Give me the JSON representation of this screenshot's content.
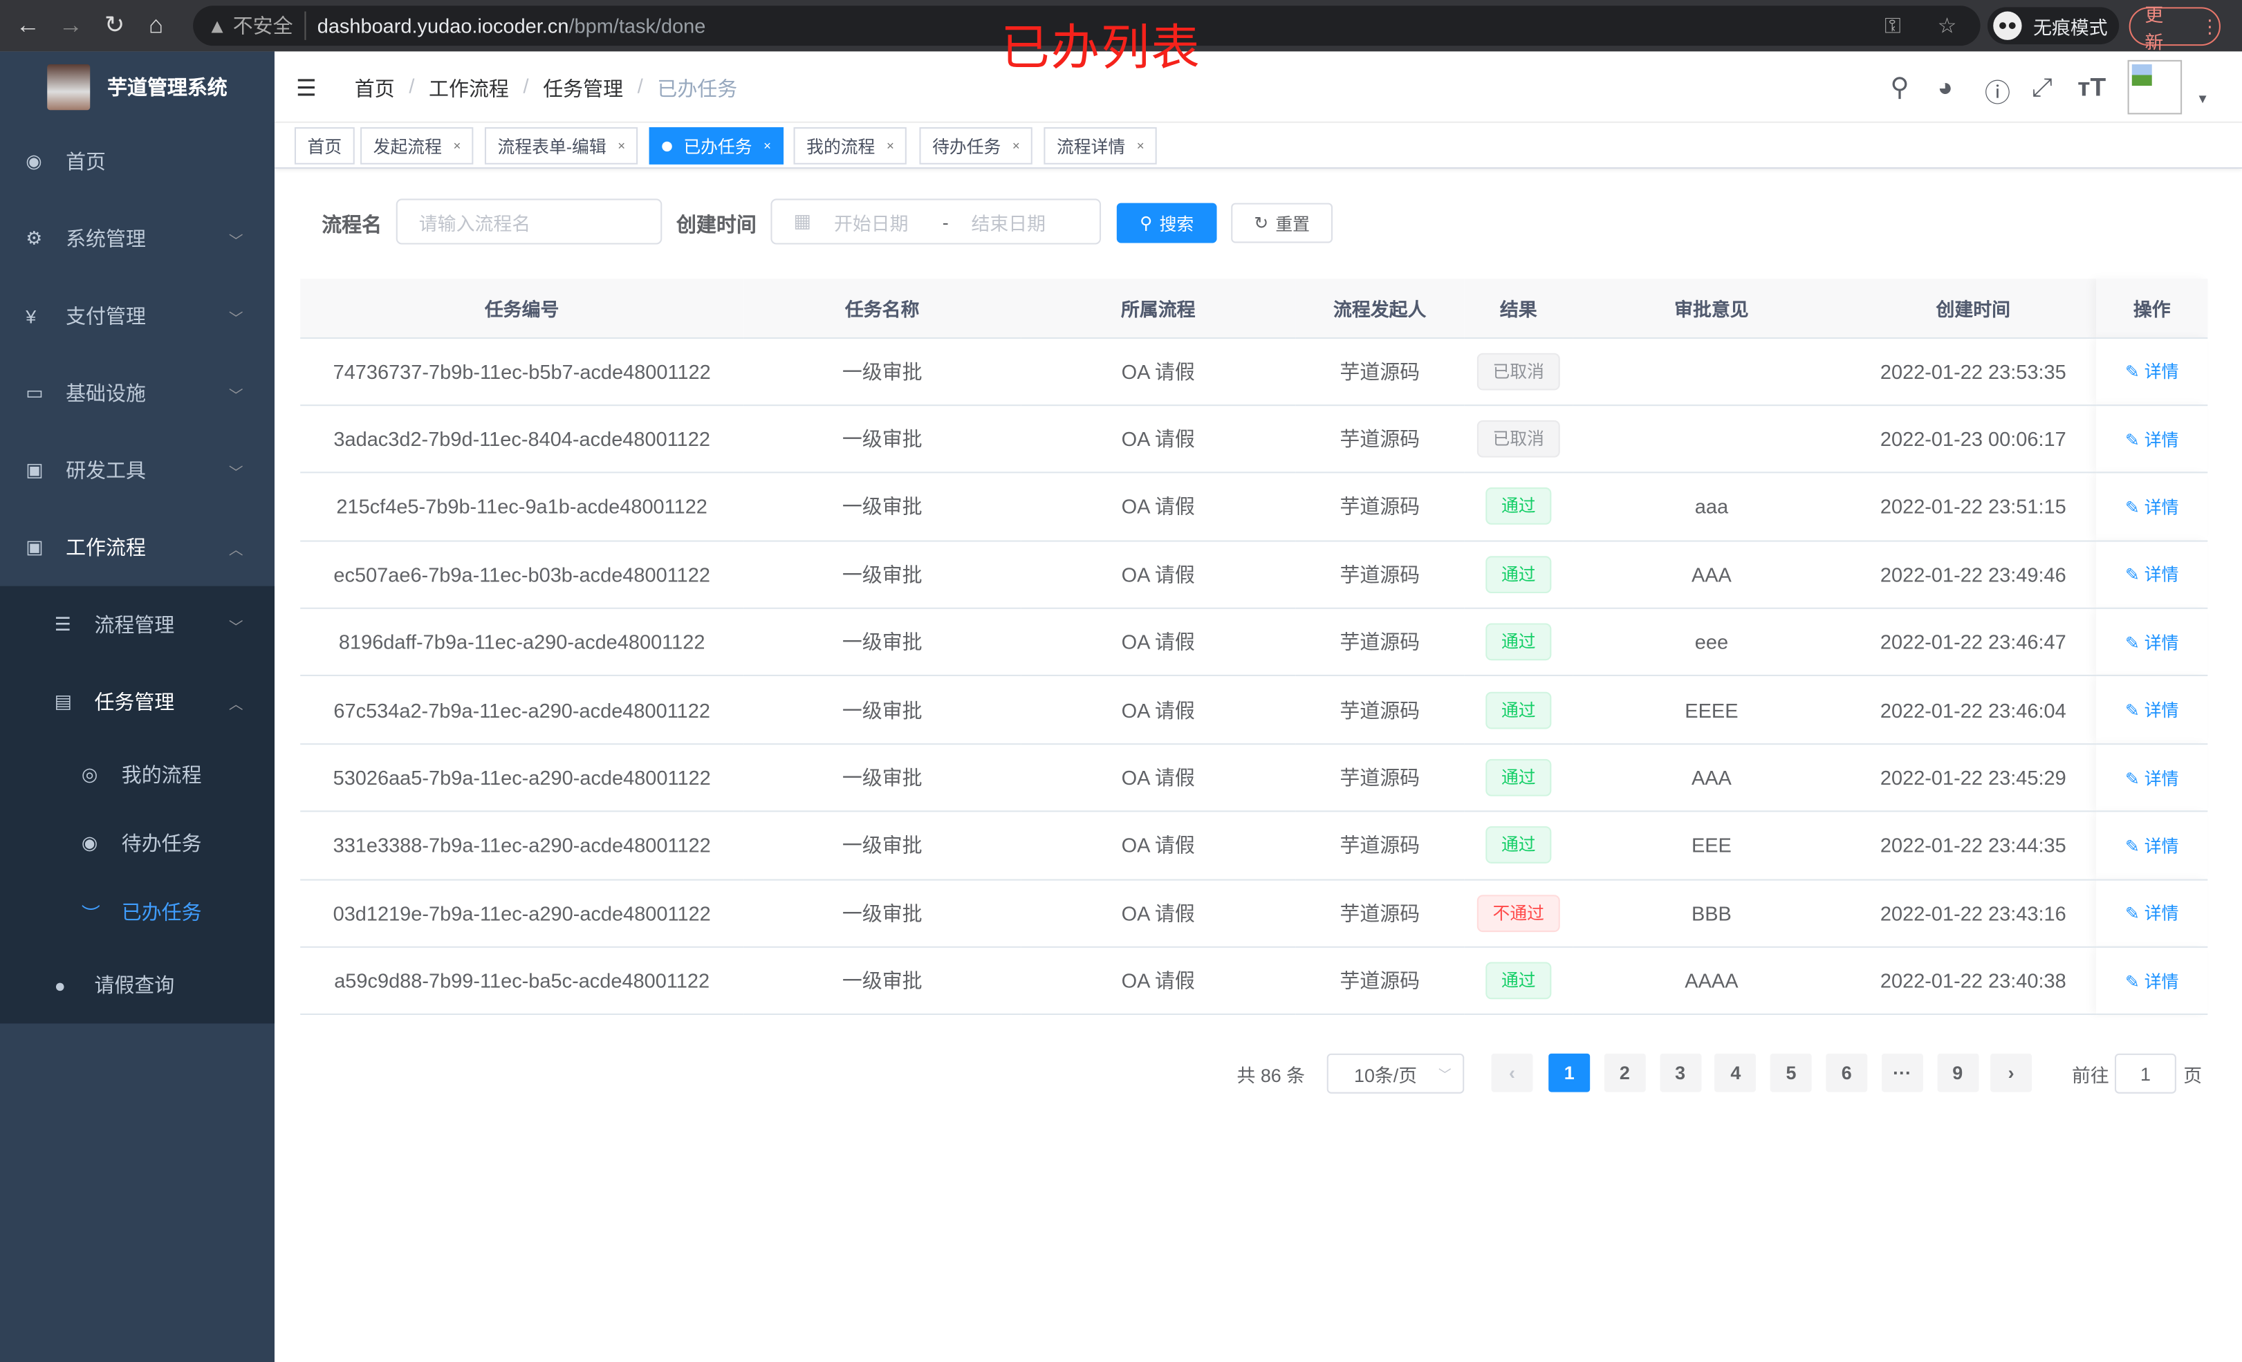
{
  "browser": {
    "back": "←",
    "forward": "→",
    "reload": "↻",
    "home": "⌂",
    "insecure": "不安全",
    "url_host": "dashboard.yudao.iocoder.cn",
    "url_path": "/bpm/task/done",
    "incognito": "无痕模式",
    "update": "更新"
  },
  "annotation": "已办列表",
  "app": {
    "title": "芋道管理系统"
  },
  "sidebar": {
    "items": [
      {
        "label": "首页",
        "icon": "dashboard-icon"
      },
      {
        "label": "系统管理",
        "icon": "gear-icon"
      },
      {
        "label": "支付管理",
        "icon": "yen-icon"
      },
      {
        "label": "基础设施",
        "icon": "monitor-icon"
      },
      {
        "label": "研发工具",
        "icon": "toolbox-icon"
      },
      {
        "label": "工作流程",
        "icon": "toolbox-icon"
      }
    ],
    "workflow_children": [
      {
        "label": "流程管理"
      },
      {
        "label": "任务管理"
      },
      {
        "label": "请假查询"
      }
    ],
    "task_children": [
      {
        "label": "我的流程"
      },
      {
        "label": "待办任务"
      },
      {
        "label": "已办任务"
      }
    ]
  },
  "breadcrumb": [
    "首页",
    "工作流程",
    "任务管理",
    "已办任务"
  ],
  "tags": [
    "首页",
    "发起流程",
    "流程表单-编辑",
    "已办任务",
    "我的流程",
    "待办任务",
    "流程详情"
  ],
  "search": {
    "name_label": "流程名",
    "name_placeholder": "请输入流程名",
    "time_label": "创建时间",
    "start_placeholder": "开始日期",
    "range_sep": "-",
    "end_placeholder": "结束日期",
    "search_btn": "搜索",
    "reset_btn": "重置"
  },
  "table": {
    "headers": [
      "任务编号",
      "任务名称",
      "所属流程",
      "流程发起人",
      "结果",
      "审批意见",
      "创建时间",
      "操作"
    ],
    "rows": [
      {
        "id": "74736737-7b9b-11ec-b5b7-acde48001122",
        "name": "一级审批",
        "process": "OA 请假",
        "starter": "芋道源码",
        "result": "已取消",
        "status": "cancel",
        "comment": "",
        "time": "2022-01-22 23:53:35",
        "action": "详情"
      },
      {
        "id": "3adac3d2-7b9d-11ec-8404-acde48001122",
        "name": "一级审批",
        "process": "OA 请假",
        "starter": "芋道源码",
        "result": "已取消",
        "status": "cancel",
        "comment": "",
        "time": "2022-01-23 00:06:17",
        "action": "详情"
      },
      {
        "id": "215cf4e5-7b9b-11ec-9a1b-acde48001122",
        "name": "一级审批",
        "process": "OA 请假",
        "starter": "芋道源码",
        "result": "通过",
        "status": "pass",
        "comment": "aaa",
        "time": "2022-01-22 23:51:15",
        "action": "详情"
      },
      {
        "id": "ec507ae6-7b9a-11ec-b03b-acde48001122",
        "name": "一级审批",
        "process": "OA 请假",
        "starter": "芋道源码",
        "result": "通过",
        "status": "pass",
        "comment": "AAA",
        "time": "2022-01-22 23:49:46",
        "action": "详情"
      },
      {
        "id": "8196daff-7b9a-11ec-a290-acde48001122",
        "name": "一级审批",
        "process": "OA 请假",
        "starter": "芋道源码",
        "result": "通过",
        "status": "pass",
        "comment": "eee",
        "time": "2022-01-22 23:46:47",
        "action": "详情"
      },
      {
        "id": "67c534a2-7b9a-11ec-a290-acde48001122",
        "name": "一级审批",
        "process": "OA 请假",
        "starter": "芋道源码",
        "result": "通过",
        "status": "pass",
        "comment": "EEEE",
        "time": "2022-01-22 23:46:04",
        "action": "详情"
      },
      {
        "id": "53026aa5-7b9a-11ec-a290-acde48001122",
        "name": "一级审批",
        "process": "OA 请假",
        "starter": "芋道源码",
        "result": "通过",
        "status": "pass",
        "comment": "AAA",
        "time": "2022-01-22 23:45:29",
        "action": "详情"
      },
      {
        "id": "331e3388-7b9a-11ec-a290-acde48001122",
        "name": "一级审批",
        "process": "OA 请假",
        "starter": "芋道源码",
        "result": "通过",
        "status": "pass",
        "comment": "EEE",
        "time": "2022-01-22 23:44:35",
        "action": "详情"
      },
      {
        "id": "03d1219e-7b9a-11ec-a290-acde48001122",
        "name": "一级审批",
        "process": "OA 请假",
        "starter": "芋道源码",
        "result": "不通过",
        "status": "fail",
        "comment": "BBB",
        "time": "2022-01-22 23:43:16",
        "action": "详情"
      },
      {
        "id": "a59c9d88-7b99-11ec-ba5c-acde48001122",
        "name": "一级审批",
        "process": "OA 请假",
        "starter": "芋道源码",
        "result": "通过",
        "status": "pass",
        "comment": "AAAA",
        "time": "2022-01-22 23:40:38",
        "action": "详情"
      }
    ]
  },
  "pagination": {
    "total": "共 86 条",
    "page_size": "10条/页",
    "pages": [
      "1",
      "2",
      "3",
      "4",
      "5",
      "6",
      "···",
      "9"
    ],
    "current": "1",
    "goto_label": "前往",
    "goto_value": "1",
    "page_unit": "页"
  },
  "colors": {
    "primary": "#1890ff",
    "sidebar": "#304156",
    "annotation": "#f5221b"
  }
}
